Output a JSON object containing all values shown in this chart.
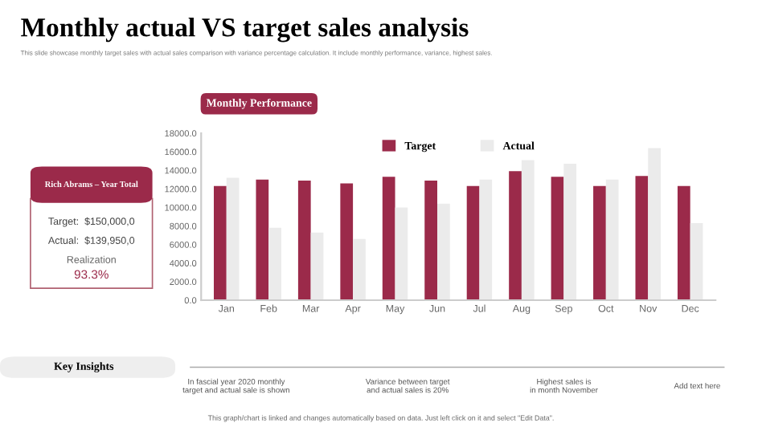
{
  "chart_data": {
    "type": "bar",
    "title": "Monthly actual VS target sales analysis",
    "subtitle": "This slide showcase monthly target sales with actual sales comparison with variance percentage calculation. It include monthly performance, variance, highest sales.",
    "categories": [
      "Jan",
      "Feb",
      "Mar",
      "Apr",
      "May",
      "Jun",
      "Jul",
      "Aug",
      "Sep",
      "Oct",
      "Nov",
      "Dec"
    ],
    "series": [
      {
        "name": "Target",
        "color": "#9b2a4a",
        "values": [
          12300,
          13000,
          12900,
          12600,
          13300,
          12900,
          12300,
          13900,
          13300,
          12300,
          13400,
          12300
        ]
      },
      {
        "name": "Actual",
        "color": "#ebebeb",
        "values": [
          13200,
          7800,
          7300,
          6600,
          10000,
          10400,
          13000,
          15100,
          14700,
          13000,
          16400,
          8300
        ]
      }
    ],
    "ylim": [
      0,
      18000
    ],
    "yticks": [
      {
        "value": 0,
        "label": "0.0"
      },
      {
        "value": 2000,
        "label": "2000.0"
      },
      {
        "value": 4000,
        "label": "4000.0"
      },
      {
        "value": 6000,
        "label": "6000.0"
      },
      {
        "value": 8000,
        "label": "8000.0"
      },
      {
        "value": 10000,
        "label": "10000.0"
      },
      {
        "value": 12000,
        "label": "12000.0"
      },
      {
        "value": 14000,
        "label": "14000.0"
      },
      {
        "value": 16000,
        "label": "16000.0"
      },
      {
        "value": 18000,
        "label": "18000.0"
      }
    ],
    "grid": false,
    "legend": "top",
    "annotations": [
      "Monthly Performance",
      "Rich Abrams – Year Total",
      "Target:  $150,000,0",
      "Actual:  $139,950,0",
      "Realization",
      "93.3%",
      "Key Insights",
      "In fascial year 2020 monthly target and actual sale is shown",
      "Variance between target and actual sales is 20%",
      "Highest sales is in month November",
      "Add text here",
      "This graph/chart is linked and changes automatically based on data. Just left click on it and select \"Edit Data\"."
    ]
  }
}
